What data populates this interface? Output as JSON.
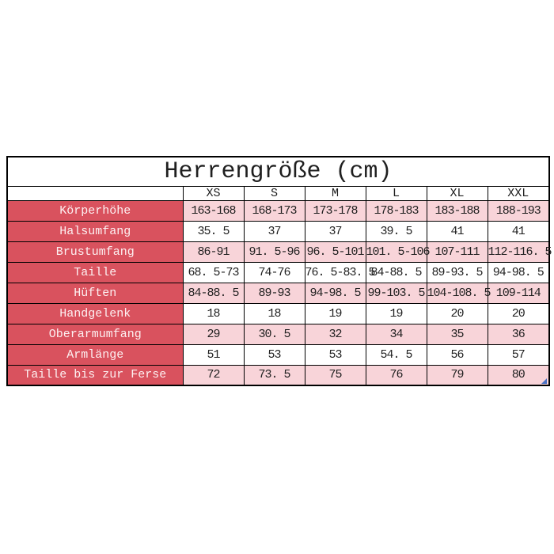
{
  "chart_data": {
    "type": "table",
    "title": "Herrengröße (cm)",
    "unit": "cm",
    "column_headers": [
      "XS",
      "S",
      "M",
      "L",
      "XL",
      "XXL"
    ],
    "rows": [
      {
        "label": "Körperhöhe",
        "values": [
          "163-168",
          "168-173",
          "173-178",
          "178-183",
          "183-188",
          "188-193"
        ]
      },
      {
        "label": "Halsumfang",
        "values": [
          "35. 5",
          "37",
          "37",
          "39. 5",
          "41",
          "41"
        ]
      },
      {
        "label": "Brustumfang",
        "values": [
          "86-91",
          "91. 5-96",
          "96. 5-101",
          "101. 5-106",
          "107-111",
          "112-116. 5"
        ]
      },
      {
        "label": "Taille",
        "values": [
          "68. 5-73",
          "74-76",
          "76. 5-83. 5",
          "84-88. 5",
          "89-93. 5",
          "94-98. 5"
        ]
      },
      {
        "label": "Hüften",
        "values": [
          "84-88. 5",
          "89-93",
          "94-98. 5",
          "99-103. 5",
          "104-108. 5",
          "109-114"
        ]
      },
      {
        "label": "Handgelenk",
        "values": [
          "18",
          "18",
          "19",
          "19",
          "20",
          "20"
        ]
      },
      {
        "label": "Oberarmumfang",
        "values": [
          "29",
          "30. 5",
          "32",
          "34",
          "35",
          "36"
        ]
      },
      {
        "label": "Armlänge",
        "values": [
          "51",
          "53",
          "53",
          "54. 5",
          "56",
          "57"
        ]
      },
      {
        "label": "Taille bis zur Ferse",
        "values": [
          "72",
          "73. 5",
          "75",
          "76",
          "79",
          "80"
        ]
      }
    ]
  },
  "colors": {
    "label_bg": "#d9525e",
    "label_text": "#fdf1f2",
    "row_alt_bg": "#f8d4d9",
    "row_bg": "#ffffff",
    "text": "#1f1f1f",
    "border": "#000000",
    "corner": "#4a72c4"
  }
}
